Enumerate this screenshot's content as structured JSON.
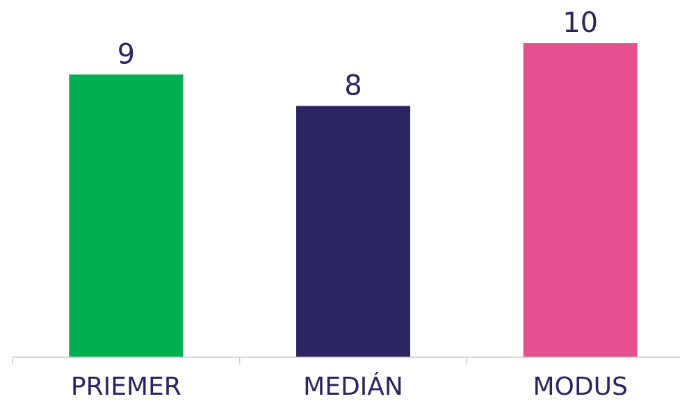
{
  "chart_data": {
    "type": "bar",
    "categories": [
      "PRIEMER",
      "MEDIÁN",
      "MODUS"
    ],
    "values": [
      9,
      8,
      10
    ],
    "colors": [
      "#00b050",
      "#2a2560",
      "#e5508f"
    ],
    "data_labels": [
      "9",
      "8",
      "10"
    ],
    "ylim": [
      0,
      10.4
    ],
    "grid": false,
    "legend": "none",
    "title": "",
    "xlabel": "",
    "ylabel": ""
  }
}
